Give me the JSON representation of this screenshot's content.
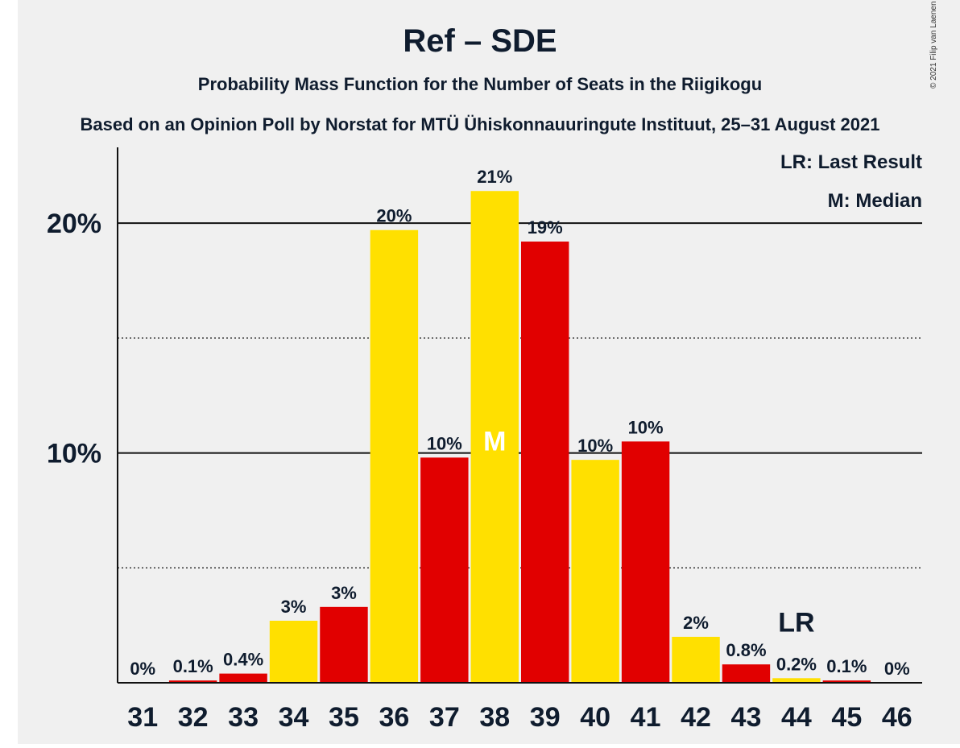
{
  "chart_data": {
    "type": "bar",
    "title": "Ref – SDE",
    "subtitle": "Probability Mass Function for the Number of Seats in the Riigikogu",
    "source": "Based on an Opinion Poll by Norstat for MTÜ Ühiskonnauuringute Instituut, 25–31 August 2021",
    "copyright": "© 2021 Filip van Laenen",
    "legend": [
      "LR: Last Result",
      "M: Median"
    ],
    "categories": [
      "31",
      "32",
      "33",
      "34",
      "35",
      "36",
      "37",
      "38",
      "39",
      "40",
      "41",
      "42",
      "43",
      "44",
      "45",
      "46"
    ],
    "values": [
      0,
      0.1,
      0.4,
      2.7,
      3.3,
      19.7,
      9.8,
      21.4,
      19.2,
      9.7,
      10.5,
      2.0,
      0.8,
      0.2,
      0.1,
      0
    ],
    "labels": [
      "0%",
      "0.1%",
      "0.4%",
      "3%",
      "3%",
      "20%",
      "10%",
      "21%",
      "19%",
      "10%",
      "10%",
      "2%",
      "0.8%",
      "0.2%",
      "0.1%",
      "0%"
    ],
    "bar_colors": [
      "#FFE000",
      "#E10000",
      "#E10000",
      "#FFE000",
      "#E10000",
      "#FFE000",
      "#E10000",
      "#FFE000",
      "#E10000",
      "#FFE000",
      "#E10000",
      "#FFE000",
      "#E10000",
      "#FFE000",
      "#E10000",
      "#FFE000"
    ],
    "median": {
      "category": "38",
      "marker": "M"
    },
    "last_result": {
      "category": "44",
      "marker": "LR"
    },
    "ylim": [
      0,
      23.3
    ],
    "yticks": [
      {
        "value": 10,
        "label": "10%"
      },
      {
        "value": 20,
        "label": "20%"
      }
    ],
    "dotted_gridlines": [
      5,
      15
    ],
    "colors": {
      "background": "#F0F0F0",
      "yellow": "#FFE000",
      "red": "#E10000",
      "text": "#0F1C2E"
    }
  }
}
